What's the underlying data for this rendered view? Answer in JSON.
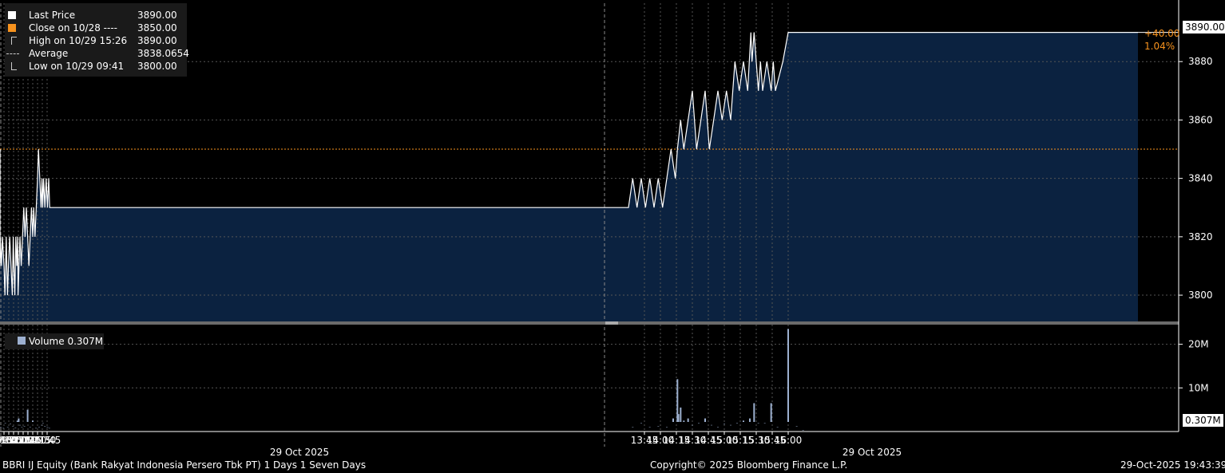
{
  "legend": {
    "rows": [
      {
        "label": "Last Price",
        "value": "3890.00",
        "color": "#ffffff"
      },
      {
        "label": "Close on 10/28 ----",
        "value": "3850.00",
        "color": "#f7931e"
      },
      {
        "label": "High on 10/29 15:26",
        "value": "3890.00",
        "color": "#cccccc"
      },
      {
        "label": "Average",
        "value": "3838.0654",
        "color": "#cccccc"
      },
      {
        "label": "Low on 10/29 09:41",
        "value": "3800.00",
        "color": "#cccccc"
      }
    ],
    "volume_label": "Volume 0.307M"
  },
  "tags": {
    "last_price": "3890.00",
    "change_abs": "+40.00",
    "change_pct": "1.04%",
    "last_volume": "0.307M"
  },
  "footer": {
    "left": "BBRI IJ Equity (Bank Rakyat Indonesia Persero Tbk PT) 1 Days 1 Seven Days",
    "center": "Copyright© 2025 Bloomberg Finance L.P.",
    "right": "29-Oct-2025 19:43:39"
  },
  "colors": {
    "background": "#000000",
    "area_fill": "#0b2240",
    "price_line": "#ffffff",
    "prev_close": "#f7931e",
    "volume_bar": "#9db0d0",
    "grid": "#555555"
  },
  "chart_data": [
    {
      "type": "area",
      "series": [
        {
          "name": "Last Price",
          "x": [
            "09:01",
            "09:04",
            "09:06",
            "09:12",
            "09:15",
            "09:18",
            "09:22",
            "09:25",
            "09:30",
            "09:33",
            "09:37",
            "09:41",
            "09:44",
            "09:48",
            "09:52",
            "09:56",
            "09:59",
            "10:01",
            "10:04",
            "10:07",
            "10:10",
            "10:13",
            "10:14",
            "10:17",
            "10:20",
            "10:24",
            "10:28",
            "10:32",
            "10:36",
            "10:40",
            "10:44",
            "10:48",
            "10:52",
            "10:56",
            "11:00",
            "11:03",
            "11:07",
            "11:11",
            "11:15",
            "11:18",
            "11:22",
            "11:26",
            "11:29",
            "11:31",
            "11:34",
            "11:38",
            "11:42",
            "11:46",
            "11:50",
            "11:53",
            "13:30",
            "13:34",
            "13:38",
            "13:42",
            "13:46",
            "13:50",
            "13:54",
            "13:58",
            "14:02",
            "14:06",
            "14:10",
            "14:14",
            "14:16",
            "14:19",
            "14:22",
            "14:26",
            "14:30",
            "14:34",
            "14:38",
            "14:42",
            "14:46",
            "14:50",
            "14:54",
            "14:58",
            "15:02",
            "15:06",
            "15:10",
            "15:14",
            "15:18",
            "15:22",
            "15:25",
            "15:26",
            "15:28",
            "15:30",
            "15:32",
            "15:34",
            "15:36",
            "15:40",
            "15:44",
            "15:46",
            "15:48",
            "15:55",
            "16:00",
            "16:06",
            "16:10",
            "16:14",
            "16:20",
            "16:30"
          ],
          "values": [
            3850,
            3810,
            3820,
            3830,
            3810,
            3820,
            3810,
            3820,
            3810,
            3800,
            3820,
            3800,
            3810,
            3820,
            3810,
            3800,
            3820,
            3810,
            3800,
            3820,
            3810,
            3820,
            3800,
            3810,
            3820,
            3810,
            3820,
            3830,
            3820,
            3830,
            3820,
            3810,
            3820,
            3830,
            3820,
            3830,
            3820,
            3830,
            3840,
            3850,
            3840,
            3830,
            3840,
            3830,
            3840,
            3830,
            3840,
            3830,
            3840,
            3830,
            3830,
            3840,
            3830,
            3840,
            3830,
            3840,
            3830,
            3840,
            3830,
            3840,
            3850,
            3840,
            3850,
            3860,
            3850,
            3860,
            3870,
            3850,
            3860,
            3870,
            3850,
            3860,
            3870,
            3860,
            3870,
            3860,
            3880,
            3870,
            3880,
            3870,
            3890,
            3880,
            3890,
            3880,
            3870,
            3880,
            3870,
            3880,
            3870,
            3880,
            3870,
            3880,
            3890,
            3890,
            3890,
            3890,
            3890,
            3890
          ]
        }
      ],
      "reference_lines": [
        {
          "name": "Close on 10/28",
          "value": 3850
        }
      ],
      "x_ticks": [
        "09:15",
        "09:30",
        "09:45",
        "10:00",
        "10:15",
        "10:30",
        "10:45",
        "11:00",
        "11:15",
        "11:30",
        "11:45",
        "13:45",
        "14:00",
        "14:15",
        "14:30",
        "14:45",
        "15:00",
        "15:15",
        "15:30",
        "15:45",
        "16:00"
      ],
      "x_date_labels": [
        "29 Oct 2025",
        "29 Oct 2025"
      ],
      "y_ticks": [
        3800,
        3820,
        3840,
        3860,
        3880
      ],
      "ylim": [
        3791,
        3900
      ],
      "grid": true,
      "legend_position": "top-left"
    },
    {
      "type": "bar",
      "series": [
        {
          "name": "Volume",
          "x": [
            "09:02",
            "09:08",
            "09:14",
            "09:20",
            "09:28",
            "09:34",
            "09:42",
            "09:50",
            "09:58",
            "10:06",
            "10:12",
            "10:16",
            "10:20",
            "10:26",
            "10:34",
            "10:44",
            "10:52",
            "11:00",
            "11:10",
            "11:20",
            "11:28",
            "11:32",
            "11:38",
            "11:46",
            "11:52",
            "13:34",
            "13:42",
            "13:50",
            "13:58",
            "14:06",
            "14:12",
            "14:16",
            "14:17",
            "14:19",
            "14:22",
            "14:26",
            "14:30",
            "14:36",
            "14:42",
            "14:48",
            "14:54",
            "15:00",
            "15:06",
            "15:12",
            "15:18",
            "15:24",
            "15:28",
            "15:32",
            "15:38",
            "15:44",
            "15:50",
            "16:00",
            "16:08",
            "16:14"
          ],
          "values": [
            1.5,
            2.5,
            1.2,
            1.0,
            0.8,
            2.0,
            1.0,
            1.8,
            1.2,
            0.9,
            2.5,
            3.0,
            1.5,
            1.0,
            1.2,
            5.0,
            1.0,
            2.5,
            0.8,
            1.0,
            1.5,
            2.0,
            1.2,
            1.0,
            0.8,
            1.0,
            2.0,
            1.0,
            1.2,
            1.0,
            3.0,
            12.0,
            4.0,
            5.5,
            2.5,
            3.0,
            1.5,
            2.0,
            3.0,
            1.5,
            1.0,
            1.8,
            1.5,
            2.0,
            2.5,
            3.0,
            6.5,
            2.0,
            2.0,
            6.5,
            1.0,
            23.5,
            1.2,
            0.307
          ]
        }
      ],
      "y_ticks": [
        10,
        20
      ],
      "y_tick_labels": [
        "10M",
        "20M"
      ],
      "ylim": [
        0,
        24.5
      ]
    }
  ]
}
